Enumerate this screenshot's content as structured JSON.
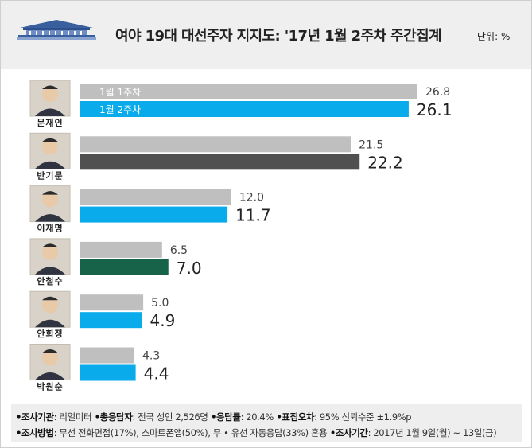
{
  "header": {
    "title": "여야 19대 대선주자 지지도: '17년 1월 2주차 주간집계",
    "unit": "단위: %"
  },
  "chart_data": {
    "type": "bar",
    "orientation": "horizontal",
    "categories": [
      "문재인",
      "반기문",
      "이재명",
      "안철수",
      "안희정",
      "박원순"
    ],
    "series": [
      {
        "name": "1월 1주차",
        "values": [
          26.8,
          21.5,
          12.0,
          6.5,
          5.0,
          4.3
        ]
      },
      {
        "name": "1월 2주차",
        "values": [
          26.1,
          22.2,
          11.7,
          7.0,
          4.9,
          4.4
        ]
      }
    ],
    "colors": {
      "prev_week": "#bfbfbf",
      "current_week": [
        "#0aabea",
        "#505050",
        "#0aabea",
        "#17634a",
        "#0aabea",
        "#0aabea"
      ]
    },
    "legend": "inside-first-bars",
    "grid": false,
    "xlim": [
      0,
      27
    ]
  },
  "footer": {
    "line1": [
      {
        "label": "조사기관",
        "value": "리얼미터"
      },
      {
        "label": "총응답자",
        "value": "전국 성인 2,526명"
      },
      {
        "label": "응답률",
        "value": "20.4%"
      },
      {
        "label": "표집오차",
        "value": "95% 신뢰수준 ±1.9%p"
      }
    ],
    "line2": [
      {
        "label": "조사방법",
        "value": "무선 전화면접(17%), 스마트폰앱(50%), 무 • 유선 자동응답(33%) 혼용"
      },
      {
        "label": "조사기간",
        "value": "2017년 1월 9일(월) ~ 13일(금)"
      }
    ]
  }
}
